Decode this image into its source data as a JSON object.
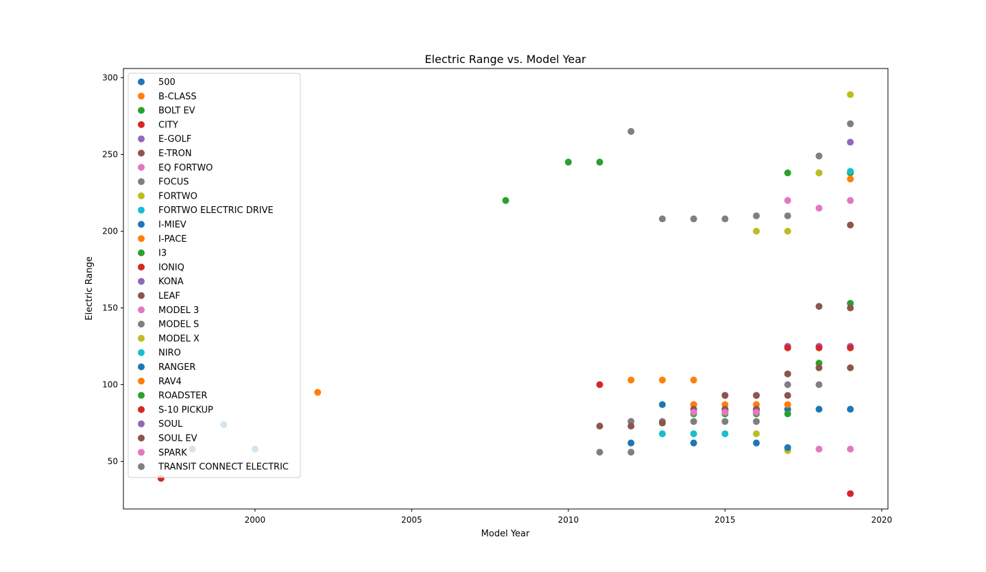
{
  "chart_data": {
    "type": "scatter",
    "title": "Electric Range vs. Model Year",
    "xlabel": "Model Year",
    "ylabel": "Electric Range",
    "xlim": [
      1995.8,
      2020.2
    ],
    "ylim": [
      19,
      306
    ],
    "xticks": [
      2000,
      2005,
      2010,
      2015,
      2020
    ],
    "yticks": [
      50,
      100,
      150,
      200,
      250,
      300
    ],
    "grid": false,
    "legend_position": "upper-left",
    "series": [
      {
        "name": "500",
        "color": "#1f77b4",
        "points": [
          [
            2013,
            87
          ],
          [
            2014,
            87
          ],
          [
            2015,
            84
          ],
          [
            2016,
            84
          ],
          [
            2017,
            84
          ],
          [
            2018,
            84
          ],
          [
            2019,
            84
          ]
        ]
      },
      {
        "name": "B-CLASS",
        "color": "#ff7f0e",
        "points": [
          [
            2014,
            87
          ],
          [
            2015,
            87
          ],
          [
            2016,
            87
          ],
          [
            2017,
            87
          ]
        ]
      },
      {
        "name": "BOLT EV",
        "color": "#2ca02c",
        "points": [
          [
            2017,
            238
          ],
          [
            2018,
            238
          ],
          [
            2019,
            238
          ]
        ]
      },
      {
        "name": "CITY",
        "color": "#d62728",
        "points": [
          [
            2011,
            100
          ]
        ]
      },
      {
        "name": "E-GOLF",
        "color": "#9467bd",
        "points": [
          [
            2015,
            83
          ],
          [
            2016,
            83
          ],
          [
            2017,
            125
          ],
          [
            2018,
            125
          ],
          [
            2019,
            125
          ]
        ]
      },
      {
        "name": "E-TRON",
        "color": "#8c564b",
        "points": [
          [
            2019,
            204
          ]
        ]
      },
      {
        "name": "EQ FORTWO",
        "color": "#e377c2",
        "points": [
          [
            2018,
            58
          ],
          [
            2019,
            58
          ]
        ]
      },
      {
        "name": "FOCUS",
        "color": "#7f7f7f",
        "points": [
          [
            2012,
            76
          ],
          [
            2013,
            76
          ],
          [
            2014,
            76
          ],
          [
            2015,
            76
          ],
          [
            2016,
            76
          ],
          [
            2017,
            100
          ],
          [
            2018,
            100
          ]
        ]
      },
      {
        "name": "FORTWO",
        "color": "#bcbd22",
        "points": [
          [
            2016,
            68
          ],
          [
            2017,
            57
          ]
        ]
      },
      {
        "name": "FORTWO ELECTRIC DRIVE",
        "color": "#17becf",
        "points": [
          [
            2013,
            68
          ],
          [
            2014,
            68
          ],
          [
            2015,
            68
          ]
        ]
      },
      {
        "name": "I-MIEV",
        "color": "#1f77b4",
        "points": [
          [
            2012,
            62
          ],
          [
            2014,
            62
          ],
          [
            2016,
            62
          ],
          [
            2017,
            59
          ]
        ]
      },
      {
        "name": "I-PACE",
        "color": "#ff7f0e",
        "points": [
          [
            2019,
            234
          ]
        ]
      },
      {
        "name": "I3",
        "color": "#2ca02c",
        "points": [
          [
            2014,
            81
          ],
          [
            2015,
            81
          ],
          [
            2016,
            81
          ],
          [
            2017,
            81
          ],
          [
            2018,
            114
          ],
          [
            2019,
            153
          ]
        ]
      },
      {
        "name": "IONIQ",
        "color": "#d62728",
        "points": [
          [
            2017,
            124
          ],
          [
            2018,
            124
          ],
          [
            2019,
            124
          ]
        ]
      },
      {
        "name": "KONA",
        "color": "#9467bd",
        "points": [
          [
            2019,
            258
          ]
        ]
      },
      {
        "name": "LEAF",
        "color": "#8c564b",
        "points": [
          [
            2011,
            73
          ],
          [
            2012,
            73
          ],
          [
            2013,
            75
          ],
          [
            2014,
            84
          ],
          [
            2015,
            84
          ],
          [
            2016,
            84
          ],
          [
            2017,
            107
          ],
          [
            2018,
            151
          ],
          [
            2019,
            150
          ]
        ]
      },
      {
        "name": "MODEL 3",
        "color": "#e377c2",
        "points": [
          [
            2017,
            220
          ],
          [
            2018,
            215
          ],
          [
            2019,
            220
          ]
        ]
      },
      {
        "name": "MODEL S",
        "color": "#7f7f7f",
        "points": [
          [
            2012,
            265
          ],
          [
            2013,
            208
          ],
          [
            2014,
            208
          ],
          [
            2015,
            208
          ],
          [
            2016,
            210
          ],
          [
            2017,
            210
          ],
          [
            2018,
            249
          ],
          [
            2019,
            270
          ]
        ]
      },
      {
        "name": "MODEL X",
        "color": "#bcbd22",
        "points": [
          [
            2016,
            200
          ],
          [
            2017,
            200
          ],
          [
            2018,
            238
          ],
          [
            2019,
            289
          ]
        ]
      },
      {
        "name": "NIRO",
        "color": "#17becf",
        "points": [
          [
            2019,
            239
          ]
        ]
      },
      {
        "name": "RANGER",
        "color": "#1f77b4",
        "points": [
          [
            1998,
            58
          ],
          [
            1999,
            74
          ],
          [
            2000,
            58
          ]
        ]
      },
      {
        "name": "RAV4",
        "color": "#ff7f0e",
        "points": [
          [
            2002,
            95
          ],
          [
            2012,
            103
          ],
          [
            2013,
            103
          ],
          [
            2014,
            103
          ]
        ]
      },
      {
        "name": "ROADSTER",
        "color": "#2ca02c",
        "points": [
          [
            2008,
            220
          ],
          [
            2010,
            245
          ],
          [
            2011,
            245
          ]
        ]
      },
      {
        "name": "S-10 PICKUP",
        "color": "#d62728",
        "points": [
          [
            1997,
            39
          ]
        ]
      },
      {
        "name": "SOUL",
        "color": "#9467bd",
        "points": [
          [
            2015,
            93
          ],
          [
            2016,
            93
          ]
        ]
      },
      {
        "name": "SOUL EV",
        "color": "#8c564b",
        "points": [
          [
            2015,
            93
          ],
          [
            2016,
            93
          ],
          [
            2017,
            93
          ],
          [
            2018,
            111
          ],
          [
            2019,
            111
          ]
        ]
      },
      {
        "name": "SPARK",
        "color": "#e377c2",
        "points": [
          [
            2014,
            82
          ],
          [
            2015,
            82
          ],
          [
            2016,
            82
          ]
        ]
      },
      {
        "name": "TRANSIT CONNECT ELECTRIC",
        "color": "#7f7f7f",
        "points": [
          [
            2011,
            56
          ],
          [
            2012,
            56
          ]
        ]
      }
    ],
    "extra_points": [
      {
        "color": "#d62728",
        "points": [
          [
            2019,
            29
          ]
        ]
      }
    ]
  }
}
